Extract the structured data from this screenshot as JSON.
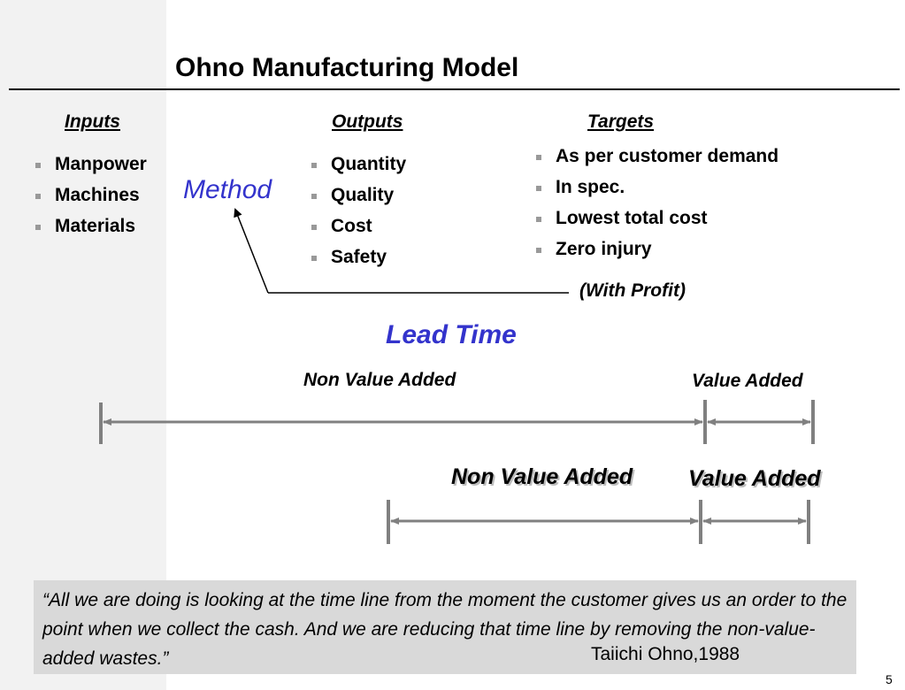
{
  "title": "Ohno Manufacturing Model",
  "inputs": {
    "heading": "Inputs",
    "items": [
      "Manpower",
      "Machines",
      "Materials"
    ]
  },
  "method": "Method",
  "outputs": {
    "heading": "Outputs",
    "items": [
      "Quantity",
      "Quality",
      "Cost",
      "Safety"
    ]
  },
  "targets": {
    "heading": "Targets",
    "items": [
      "As per customer demand",
      "In spec.",
      "Lowest total cost",
      "Zero injury"
    ]
  },
  "with_profit": "(With Profit)",
  "lead_time": "Lead Time",
  "timeline_1": {
    "non_value_added": "Non Value Added",
    "value_added": "Value Added"
  },
  "timeline_2": {
    "non_value_added": "Non Value Added",
    "value_added": "Value Added"
  },
  "quote": {
    "text": "“All we are doing is looking at the time line from the moment the customer gives us an order to the point when we collect the cash. And we are reducing that time line by removing the non-value-added wastes.”",
    "author": "Taiichi Ohno,1988"
  },
  "page_number": "5",
  "colors": {
    "accent": "#3333cc",
    "band": "#f2f2f2",
    "quote_bg": "#d9d9d9",
    "timeline": "#808080"
  }
}
